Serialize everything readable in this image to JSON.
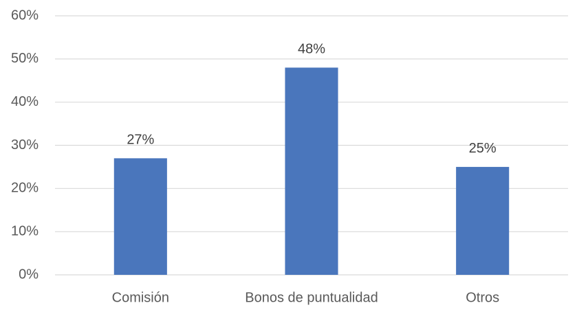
{
  "chart_data": {
    "type": "bar",
    "categories": [
      "Comisión",
      "Bonos de puntualidad",
      "Otros"
    ],
    "values": [
      27,
      48,
      25
    ],
    "value_labels": [
      "27%",
      "48%",
      "25%"
    ],
    "color": "#4a76bc",
    "ylim": [
      0,
      60
    ],
    "yticks": [
      {
        "value": 0,
        "label": "0%"
      },
      {
        "value": 10,
        "label": "10%"
      },
      {
        "value": 20,
        "label": "20%"
      },
      {
        "value": 30,
        "label": "30%"
      },
      {
        "value": 40,
        "label": "40%"
      },
      {
        "value": 50,
        "label": "50%"
      },
      {
        "value": 60,
        "label": "60%"
      }
    ],
    "grid": true
  }
}
